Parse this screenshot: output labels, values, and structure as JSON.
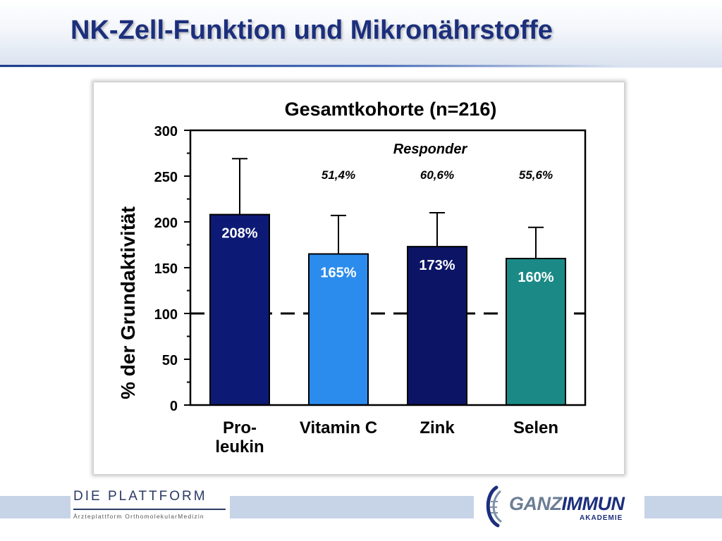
{
  "slide": {
    "title": "NK-Zell-Funktion und Mikronährstoffe"
  },
  "footer": {
    "left_logo": {
      "name": "DIE PLATTFORM",
      "subtitle": "Ärzteplattform OrthomolekularMedizin"
    },
    "right_logo": {
      "name_part1": "GANZ",
      "name_part2": "IMMUN",
      "subtitle": "AKADEMIE"
    }
  },
  "colors": {
    "title": "#1c2f7c",
    "header_accent": "#1e3c8c",
    "footer_band": "#c7d3e7"
  },
  "chart_data": {
    "type": "bar",
    "title": "Gesamtkohorte (n=216)",
    "ylabel": "% der Grundaktivität",
    "xlabel": "",
    "ylim": [
      0,
      300
    ],
    "yticks": [
      "0",
      "50",
      "100",
      "150",
      "200",
      "250",
      "300"
    ],
    "ytick_values": [
      0,
      50,
      100,
      150,
      200,
      250,
      300
    ],
    "grid": false,
    "reference_line": 100,
    "responder_label": "Responder",
    "categories": [
      {
        "id": "proleukin",
        "label_lines": [
          "Pro-",
          "leukin"
        ],
        "value": 208,
        "error_upper": 269,
        "bar_label": "208%",
        "responder": "",
        "color": "#0d1a75"
      },
      {
        "id": "vitamin-c",
        "label_lines": [
          "Vitamin C"
        ],
        "value": 165,
        "error_upper": 207,
        "bar_label": "165%",
        "responder": "51,4%",
        "color": "#2b8cee"
      },
      {
        "id": "zink",
        "label_lines": [
          "Zink"
        ],
        "value": 173,
        "error_upper": 210,
        "bar_label": "173%",
        "responder": "60,6%",
        "color": "#0c1466"
      },
      {
        "id": "selen",
        "label_lines": [
          "Selen"
        ],
        "value": 160,
        "error_upper": 194,
        "bar_label": "160%",
        "responder": "55,6%",
        "color": "#1b8a86"
      }
    ]
  }
}
